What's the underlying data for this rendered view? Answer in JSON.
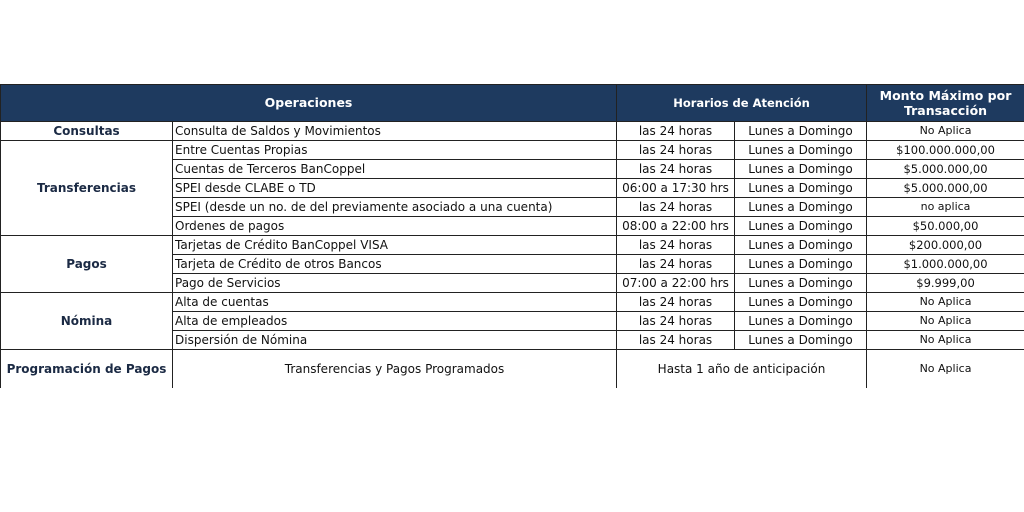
{
  "header": {
    "operaciones": "Operaciones",
    "horarios": "Horarios de Atención",
    "monto": "Monto Máximo por Transacción"
  },
  "groups": [
    {
      "category": "Consultas",
      "rows": [
        {
          "operation": "Consulta de Saldos y Movimientos",
          "hours": "las 24 horas",
          "days": "Lunes a  Domingo",
          "max": "No Aplica"
        }
      ]
    },
    {
      "category": "Transferencias",
      "rows": [
        {
          "operation": "Entre Cuentas Propias",
          "hours": "las 24 horas",
          "days": "Lunes a  Domingo",
          "max": "$100.000.000,00"
        },
        {
          "operation": "Cuentas de Terceros BanCoppel",
          "hours": "las 24 horas",
          "days": "Lunes a  Domingo",
          "max": "$5.000.000,00"
        },
        {
          "operation": "SPEI desde CLABE o TD",
          "hours": "06:00 a 17:30 hrs",
          "days": "Lunes a  Domingo",
          "max": "$5.000.000,00"
        },
        {
          "operation": "SPEI (desde un no. de del previamente asociado a una cuenta)",
          "hours": "las 24 horas",
          "days": "Lunes a  Domingo",
          "max": "no aplica"
        },
        {
          "operation": "Ordenes de pagos",
          "hours": "08:00 a 22:00 hrs",
          "days": "Lunes a  Domingo",
          "max": "$50.000,00"
        }
      ]
    },
    {
      "category": "Pagos",
      "rows": [
        {
          "operation": "Tarjetas de Crédito BanCoppel VISA",
          "hours": "las 24 horas",
          "days": "Lunes a  Domingo",
          "max": "$200.000,00"
        },
        {
          "operation": "Tarjeta de Crédito de otros Bancos",
          "hours": "las 24 horas",
          "days": "Lunes a  Domingo",
          "max": "$1.000.000,00"
        },
        {
          "operation": "Pago de Servicios",
          "hours": "07:00 a 22:00 hrs",
          "days": "Lunes a  Domingo",
          "max": "$9.999,00"
        }
      ]
    },
    {
      "category": "Nómina",
      "rows": [
        {
          "operation": "Alta de cuentas",
          "hours": "las 24 horas",
          "days": "Lunes a  Domingo",
          "max": "No Aplica"
        },
        {
          "operation": "Alta de empleados",
          "hours": "las 24 horas",
          "days": "Lunes a  Domingo",
          "max": "No Aplica"
        },
        {
          "operation": "Dispersión de Nómina",
          "hours": "las 24 horas",
          "days": "Lunes a  Domingo",
          "max": "No Aplica"
        }
      ]
    }
  ],
  "programacion": {
    "category": "Programación de Pagos",
    "operation": "Transferencias y Pagos Programados",
    "hours": "Hasta 1 año de anticipación",
    "max": "No Aplica"
  }
}
